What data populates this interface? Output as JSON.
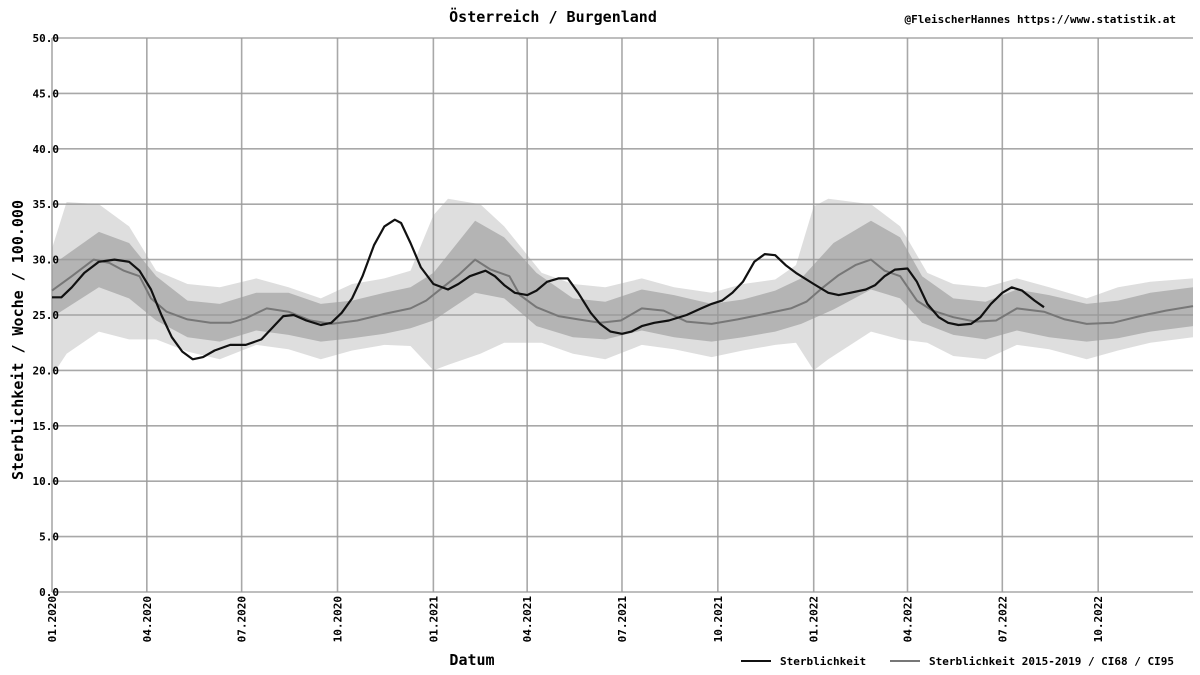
{
  "chart_data": {
    "type": "line",
    "title": "Österreich / Burgenland",
    "credit": "@FleischerHannes https://www.statistik.at",
    "xlabel": "Datum",
    "ylabel": "Sterblichkeit / Woche / 100.000",
    "ylim": [
      0,
      50
    ],
    "xlim": [
      "2020-01-01",
      "2022-12-31"
    ],
    "yticks": [
      "0.0",
      "5.0",
      "10.0",
      "15.0",
      "20.0",
      "25.0",
      "30.0",
      "35.0",
      "40.0",
      "45.0",
      "50.0"
    ],
    "xticks": [
      {
        "date": "2020-01-01",
        "label": "01.2020"
      },
      {
        "date": "2020-04-01",
        "label": "04.2020"
      },
      {
        "date": "2020-07-01",
        "label": "07.2020"
      },
      {
        "date": "2020-10-01",
        "label": "10.2020"
      },
      {
        "date": "2021-01-01",
        "label": "01.2021"
      },
      {
        "date": "2021-04-01",
        "label": "04.2021"
      },
      {
        "date": "2021-07-01",
        "label": "07.2021"
      },
      {
        "date": "2021-10-01",
        "label": "10.2021"
      },
      {
        "date": "2022-01-01",
        "label": "01.2022"
      },
      {
        "date": "2022-04-01",
        "label": "04.2022"
      },
      {
        "date": "2022-07-01",
        "label": "07.2022"
      },
      {
        "date": "2022-10-01",
        "label": "10.2022"
      }
    ],
    "grid": true,
    "legend_position": "bottom-right",
    "colors": {
      "actual": "#111111",
      "baseline": "#777777",
      "ci68": "#b4b4b4",
      "ci95": "#dedede",
      "grid": "#9a9a9a"
    },
    "series": [
      {
        "name": "Sterblichkeit",
        "points": [
          [
            "2020-01-01",
            26.6
          ],
          [
            "2020-01-10",
            26.6
          ],
          [
            "2020-01-20",
            27.5
          ],
          [
            "2020-02-01",
            28.8
          ],
          [
            "2020-02-15",
            29.8
          ],
          [
            "2020-03-01",
            30.0
          ],
          [
            "2020-03-15",
            29.8
          ],
          [
            "2020-03-25",
            29.0
          ],
          [
            "2020-04-05",
            27.3
          ],
          [
            "2020-04-15",
            25.0
          ],
          [
            "2020-04-25",
            23.0
          ],
          [
            "2020-05-05",
            21.7
          ],
          [
            "2020-05-15",
            21.0
          ],
          [
            "2020-05-25",
            21.2
          ],
          [
            "2020-06-05",
            21.8
          ],
          [
            "2020-06-20",
            22.3
          ],
          [
            "2020-07-05",
            22.3
          ],
          [
            "2020-07-20",
            22.8
          ],
          [
            "2020-08-01",
            24.0
          ],
          [
            "2020-08-10",
            24.9
          ],
          [
            "2020-08-20",
            25.0
          ],
          [
            "2020-09-01",
            24.5
          ],
          [
            "2020-09-15",
            24.1
          ],
          [
            "2020-09-25",
            24.3
          ],
          [
            "2020-10-05",
            25.2
          ],
          [
            "2020-10-15",
            26.5
          ],
          [
            "2020-10-25",
            28.5
          ],
          [
            "2020-11-05",
            31.3
          ],
          [
            "2020-11-15",
            33.0
          ],
          [
            "2020-11-25",
            33.6
          ],
          [
            "2020-12-01",
            33.3
          ],
          [
            "2020-12-10",
            31.5
          ],
          [
            "2020-12-20",
            29.3
          ],
          [
            "2021-01-01",
            27.8
          ],
          [
            "2021-01-15",
            27.3
          ],
          [
            "2021-01-25",
            27.8
          ],
          [
            "2021-02-05",
            28.5
          ],
          [
            "2021-02-20",
            29.0
          ],
          [
            "2021-03-01",
            28.5
          ],
          [
            "2021-03-10",
            27.7
          ],
          [
            "2021-03-20",
            27.0
          ],
          [
            "2021-04-01",
            26.8
          ],
          [
            "2021-04-10",
            27.2
          ],
          [
            "2021-04-20",
            28.0
          ],
          [
            "2021-05-01",
            28.3
          ],
          [
            "2021-05-10",
            28.3
          ],
          [
            "2021-05-20",
            27.0
          ],
          [
            "2021-06-01",
            25.2
          ],
          [
            "2021-06-10",
            24.2
          ],
          [
            "2021-06-20",
            23.5
          ],
          [
            "2021-07-01",
            23.3
          ],
          [
            "2021-07-10",
            23.5
          ],
          [
            "2021-07-20",
            24.0
          ],
          [
            "2021-08-01",
            24.3
          ],
          [
            "2021-08-15",
            24.5
          ],
          [
            "2021-09-01",
            25.0
          ],
          [
            "2021-09-15",
            25.6
          ],
          [
            "2021-09-25",
            26.0
          ],
          [
            "2021-10-05",
            26.3
          ],
          [
            "2021-10-15",
            27.0
          ],
          [
            "2021-10-25",
            28.0
          ],
          [
            "2021-11-05",
            29.8
          ],
          [
            "2021-11-15",
            30.5
          ],
          [
            "2021-11-25",
            30.4
          ],
          [
            "2021-12-05",
            29.5
          ],
          [
            "2021-12-15",
            28.8
          ],
          [
            "2022-01-01",
            27.8
          ],
          [
            "2022-01-15",
            27.0
          ],
          [
            "2022-01-25",
            26.8
          ],
          [
            "2022-02-05",
            27.0
          ],
          [
            "2022-02-20",
            27.3
          ],
          [
            "2022-03-01",
            27.7
          ],
          [
            "2022-03-10",
            28.5
          ],
          [
            "2022-03-20",
            29.1
          ],
          [
            "2022-04-01",
            29.2
          ],
          [
            "2022-04-10",
            28.0
          ],
          [
            "2022-04-20",
            26.0
          ],
          [
            "2022-05-01",
            24.8
          ],
          [
            "2022-05-10",
            24.3
          ],
          [
            "2022-05-20",
            24.1
          ],
          [
            "2022-06-01",
            24.2
          ],
          [
            "2022-06-10",
            24.8
          ],
          [
            "2022-06-20",
            26.0
          ],
          [
            "2022-07-01",
            27.0
          ],
          [
            "2022-07-10",
            27.5
          ],
          [
            "2022-07-20",
            27.2
          ],
          [
            "2022-08-01",
            26.3
          ],
          [
            "2022-08-10",
            25.7
          ]
        ]
      },
      {
        "name": "Sterblichkeit 2015-2019 / CI68 / CI95",
        "points": [
          [
            "2020-01-01",
            27.2
          ],
          [
            "2020-01-20",
            28.5
          ],
          [
            "2020-02-10",
            30.0
          ],
          [
            "2020-02-25",
            29.7
          ],
          [
            "2020-03-10",
            29.0
          ],
          [
            "2020-03-25",
            28.5
          ],
          [
            "2020-04-05",
            26.5
          ],
          [
            "2020-04-20",
            25.3
          ],
          [
            "2020-05-10",
            24.6
          ],
          [
            "2020-06-01",
            24.3
          ],
          [
            "2020-06-20",
            24.3
          ],
          [
            "2020-07-05",
            24.7
          ],
          [
            "2020-07-25",
            25.6
          ],
          [
            "2020-08-15",
            25.3
          ],
          [
            "2020-09-05",
            24.5
          ],
          [
            "2020-09-25",
            24.2
          ],
          [
            "2020-10-20",
            24.5
          ],
          [
            "2020-11-15",
            25.1
          ],
          [
            "2020-12-10",
            25.6
          ],
          [
            "2020-12-25",
            26.3
          ],
          [
            "2021-01-10",
            27.5
          ],
          [
            "2021-01-25",
            28.6
          ],
          [
            "2021-02-10",
            30.0
          ],
          [
            "2021-02-25",
            29.1
          ],
          [
            "2021-03-15",
            28.5
          ],
          [
            "2021-03-25",
            26.8
          ],
          [
            "2021-04-10",
            25.7
          ],
          [
            "2021-05-01",
            24.9
          ],
          [
            "2021-05-20",
            24.6
          ],
          [
            "2021-06-10",
            24.3
          ],
          [
            "2021-06-30",
            24.5
          ],
          [
            "2021-07-20",
            25.6
          ],
          [
            "2021-08-10",
            25.4
          ],
          [
            "2021-09-01",
            24.4
          ],
          [
            "2021-09-25",
            24.2
          ],
          [
            "2021-10-20",
            24.6
          ],
          [
            "2021-11-15",
            25.1
          ],
          [
            "2021-12-10",
            25.6
          ],
          [
            "2021-12-25",
            26.2
          ],
          [
            "2022-01-10",
            27.5
          ],
          [
            "2022-01-25",
            28.6
          ],
          [
            "2022-02-10",
            29.5
          ],
          [
            "2022-02-25",
            30.0
          ],
          [
            "2022-03-10",
            29.0
          ],
          [
            "2022-03-25",
            28.5
          ],
          [
            "2022-04-10",
            26.3
          ],
          [
            "2022-04-25",
            25.4
          ],
          [
            "2022-05-15",
            24.8
          ],
          [
            "2022-06-05",
            24.4
          ],
          [
            "2022-06-25",
            24.5
          ],
          [
            "2022-07-15",
            25.6
          ],
          [
            "2022-08-10",
            25.3
          ],
          [
            "2022-08-30",
            24.6
          ],
          [
            "2022-09-20",
            24.2
          ],
          [
            "2022-10-15",
            24.3
          ],
          [
            "2022-11-10",
            24.9
          ],
          [
            "2022-12-05",
            25.4
          ],
          [
            "2022-12-31",
            25.8
          ]
        ]
      }
    ],
    "ci68": [
      [
        "2020-01-01",
        24.8,
        29.5
      ],
      [
        "2020-02-15",
        27.5,
        32.5
      ],
      [
        "2020-03-15",
        26.5,
        31.5
      ],
      [
        "2020-04-10",
        24.5,
        28.5
      ],
      [
        "2020-05-10",
        23.0,
        26.3
      ],
      [
        "2020-06-10",
        22.6,
        26.0
      ],
      [
        "2020-07-15",
        23.6,
        27.0
      ],
      [
        "2020-08-15",
        23.2,
        27.0
      ],
      [
        "2020-09-15",
        22.6,
        26.0
      ],
      [
        "2020-10-15",
        22.9,
        26.3
      ],
      [
        "2020-11-15",
        23.3,
        27.0
      ],
      [
        "2020-12-10",
        23.8,
        27.5
      ],
      [
        "2021-01-01",
        24.5,
        28.8
      ],
      [
        "2021-02-10",
        27.0,
        33.5
      ],
      [
        "2021-03-10",
        26.5,
        32.0
      ],
      [
        "2021-04-10",
        24.0,
        28.8
      ],
      [
        "2021-05-15",
        23.0,
        26.5
      ],
      [
        "2021-06-15",
        22.8,
        26.2
      ],
      [
        "2021-07-20",
        23.6,
        27.3
      ],
      [
        "2021-08-20",
        23.0,
        26.8
      ],
      [
        "2021-09-25",
        22.6,
        26.0
      ],
      [
        "2021-10-25",
        23.0,
        26.4
      ],
      [
        "2021-11-25",
        23.5,
        27.2
      ],
      [
        "2021-12-20",
        24.2,
        28.3
      ],
      [
        "2022-01-20",
        25.5,
        31.5
      ],
      [
        "2022-02-25",
        27.3,
        33.5
      ],
      [
        "2022-03-25",
        26.5,
        32.0
      ],
      [
        "2022-04-15",
        24.3,
        28.5
      ],
      [
        "2022-05-15",
        23.2,
        26.5
      ],
      [
        "2022-06-15",
        22.8,
        26.2
      ],
      [
        "2022-07-15",
        23.6,
        27.3
      ],
      [
        "2022-08-15",
        23.0,
        26.8
      ],
      [
        "2022-09-20",
        22.6,
        26.0
      ],
      [
        "2022-10-20",
        22.9,
        26.3
      ],
      [
        "2022-11-20",
        23.5,
        27.0
      ],
      [
        "2022-12-31",
        24.0,
        27.5
      ]
    ],
    "ci95": [
      [
        "2020-01-01",
        19.5,
        31.0
      ],
      [
        "2020-01-15",
        21.5,
        35.2
      ],
      [
        "2020-02-15",
        23.5,
        35.0
      ],
      [
        "2020-03-15",
        22.8,
        33.0
      ],
      [
        "2020-04-10",
        22.8,
        29.0
      ],
      [
        "2020-05-10",
        21.7,
        27.8
      ],
      [
        "2020-06-10",
        21.0,
        27.5
      ],
      [
        "2020-07-15",
        22.3,
        28.3
      ],
      [
        "2020-08-15",
        21.9,
        27.5
      ],
      [
        "2020-09-15",
        21.0,
        26.5
      ],
      [
        "2020-10-15",
        21.8,
        27.8
      ],
      [
        "2020-11-15",
        22.3,
        28.3
      ],
      [
        "2020-12-10",
        22.2,
        29.0
      ],
      [
        "2021-01-01",
        20.0,
        34.0
      ],
      [
        "2021-01-15",
        20.5,
        35.5
      ],
      [
        "2021-02-15",
        21.5,
        35.0
      ],
      [
        "2021-03-10",
        22.5,
        33.0
      ],
      [
        "2021-04-15",
        22.5,
        28.8
      ],
      [
        "2021-05-15",
        21.5,
        27.8
      ],
      [
        "2021-06-15",
        21.0,
        27.5
      ],
      [
        "2021-07-20",
        22.3,
        28.3
      ],
      [
        "2021-08-20",
        21.9,
        27.5
      ],
      [
        "2021-09-25",
        21.2,
        27.0
      ],
      [
        "2021-10-25",
        21.8,
        27.8
      ],
      [
        "2021-11-25",
        22.3,
        28.2
      ],
      [
        "2021-12-15",
        22.5,
        29.5
      ],
      [
        "2022-01-01",
        20.0,
        34.8
      ],
      [
        "2022-01-15",
        21.0,
        35.5
      ],
      [
        "2022-02-25",
        23.5,
        35.0
      ],
      [
        "2022-03-25",
        22.8,
        33.0
      ],
      [
        "2022-04-20",
        22.5,
        28.8
      ],
      [
        "2022-05-15",
        21.3,
        27.8
      ],
      [
        "2022-06-15",
        21.0,
        27.5
      ],
      [
        "2022-07-15",
        22.3,
        28.3
      ],
      [
        "2022-08-15",
        21.9,
        27.5
      ],
      [
        "2022-09-20",
        21.0,
        26.5
      ],
      [
        "2022-10-20",
        21.8,
        27.5
      ],
      [
        "2022-11-20",
        22.5,
        28.0
      ],
      [
        "2022-12-31",
        23.0,
        28.3
      ]
    ]
  }
}
